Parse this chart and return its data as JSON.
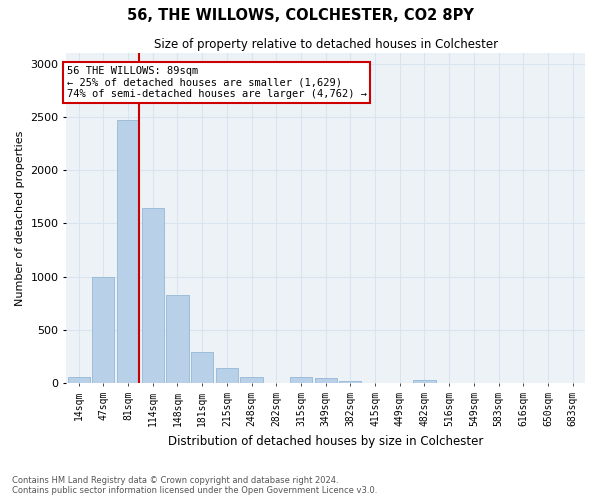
{
  "title": "56, THE WILLOWS, COLCHESTER, CO2 8PY",
  "subtitle": "Size of property relative to detached houses in Colchester",
  "xlabel": "Distribution of detached houses by size in Colchester",
  "ylabel": "Number of detached properties",
  "categories": [
    "14sqm",
    "47sqm",
    "81sqm",
    "114sqm",
    "148sqm",
    "181sqm",
    "215sqm",
    "248sqm",
    "282sqm",
    "315sqm",
    "349sqm",
    "382sqm",
    "415sqm",
    "449sqm",
    "482sqm",
    "516sqm",
    "549sqm",
    "583sqm",
    "616sqm",
    "650sqm",
    "683sqm"
  ],
  "values": [
    55,
    1000,
    2470,
    1650,
    830,
    290,
    140,
    55,
    5,
    55,
    45,
    20,
    5,
    5,
    30,
    5,
    5,
    5,
    5,
    5,
    5
  ],
  "bar_color": "#b8d0e8",
  "bar_edge_color": "#8ab0d0",
  "vline_x_index": 2,
  "annotation_text": "56 THE WILLOWS: 89sqm\n← 25% of detached houses are smaller (1,629)\n74% of semi-detached houses are larger (4,762) →",
  "annotation_box_color": "#ffffff",
  "annotation_border_color": "#cc0000",
  "vline_color": "#cc0000",
  "ylim": [
    0,
    3100
  ],
  "yticks": [
    0,
    500,
    1000,
    1500,
    2000,
    2500,
    3000
  ],
  "grid_color": "#d8e4ee",
  "background_color": "#edf2f7",
  "footer_line1": "Contains HM Land Registry data © Crown copyright and database right 2024.",
  "footer_line2": "Contains public sector information licensed under the Open Government Licence v3.0."
}
